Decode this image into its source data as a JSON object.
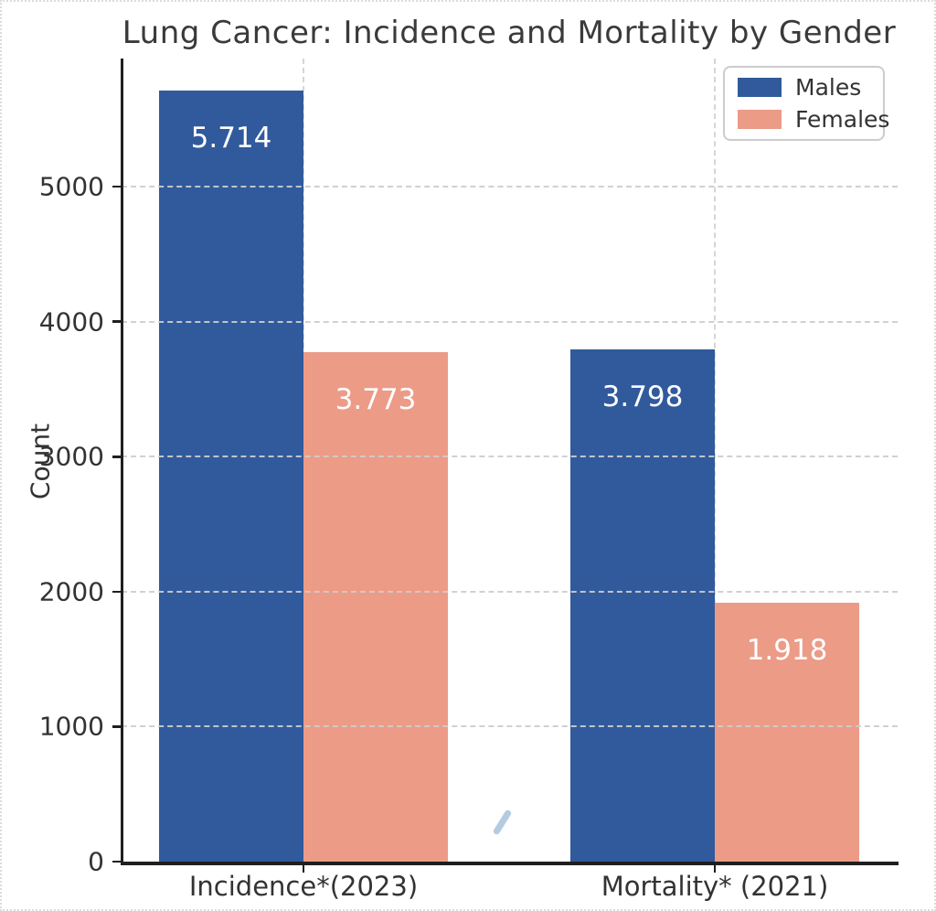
{
  "chart_data": {
    "type": "bar",
    "title": "Lung Cancer: Incidence and Mortality by Gender",
    "xlabel": "",
    "ylabel": "Count",
    "categories": [
      "Incidence*(2023)",
      "Mortality* (2021)"
    ],
    "series": [
      {
        "name": "Males",
        "color": "#315A9C",
        "values": [
          5714,
          3798
        ],
        "bar_labels": [
          "5.714",
          "3.798"
        ]
      },
      {
        "name": "Females",
        "color": "#EC9B87",
        "values": [
          3773,
          1918
        ],
        "bar_labels": [
          "3.773",
          "1.918"
        ]
      }
    ],
    "yticks": [
      0,
      1000,
      2000,
      3000,
      4000,
      5000
    ],
    "ylim": [
      0,
      5950
    ],
    "grid": true,
    "grid_style": "dashed",
    "legend_position": "upper-right",
    "legend_entries": [
      "Males",
      "Females"
    ]
  },
  "colors": {
    "males_bar": "#315A9C",
    "females_bar": "#EC9B87",
    "title_text": "#3A3A3A",
    "axis_line": "#1F1F1F",
    "gridline": "#CDCDCD",
    "bar_value_text": "#FFFFFF",
    "legend_border": "#CCCCCC"
  }
}
